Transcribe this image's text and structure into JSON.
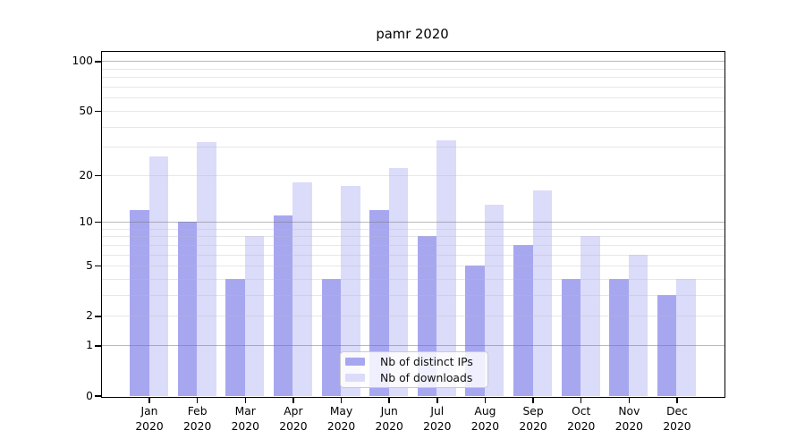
{
  "page": {
    "background": "#ffffff"
  },
  "chart_data": {
    "type": "bar",
    "title": "pamr 2020",
    "x_months": [
      "Jan",
      "Feb",
      "Mar",
      "Apr",
      "May",
      "Jun",
      "Jul",
      "Aug",
      "Sep",
      "Oct",
      "Nov",
      "Dec"
    ],
    "x_year": "2020",
    "series": [
      {
        "name": "Nb of distinct IPs",
        "color": "#a7a7f0",
        "values": [
          12,
          10,
          4,
          11,
          4,
          12,
          8,
          5,
          7,
          4,
          4,
          3
        ]
      },
      {
        "name": "Nb of downloads",
        "color": "#dbdbfa",
        "values": [
          26,
          32,
          8,
          18,
          17,
          22,
          33,
          13,
          16,
          8,
          6,
          4
        ]
      }
    ],
    "xlabel": "",
    "ylabel": "",
    "y_scale": "log1p",
    "ylim": [
      0,
      116
    ],
    "y_tick_values": [
      0,
      1,
      2,
      5,
      10,
      20,
      50,
      100
    ],
    "major_gridlines": [
      1,
      10,
      100
    ],
    "minor_gridlines": [
      2,
      3,
      4,
      5,
      6,
      7,
      8,
      9,
      20,
      30,
      40,
      50,
      60,
      70,
      80,
      90
    ],
    "grid": true,
    "legend_position": "lower-center"
  }
}
